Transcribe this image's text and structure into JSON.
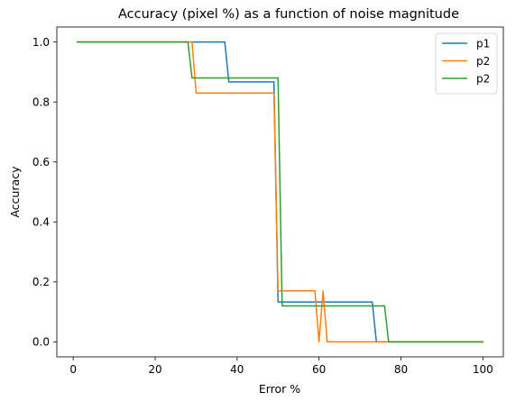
{
  "chart_data": {
    "type": "line",
    "title": "Accuracy (pixel %) as a function of noise magnitude",
    "xlabel": "Error %",
    "ylabel": "Accuracy",
    "xlim": [
      -4,
      105
    ],
    "ylim": [
      -0.05,
      1.05
    ],
    "xticks": [
      0,
      20,
      40,
      60,
      80,
      100
    ],
    "yticks": [
      0.0,
      0.2,
      0.4,
      0.6,
      0.8,
      1.0
    ],
    "xtick_labels": [
      "0",
      "20",
      "40",
      "60",
      "80",
      "100"
    ],
    "ytick_labels": [
      "0.0",
      "0.2",
      "0.4",
      "0.6",
      "0.8",
      "1.0"
    ],
    "grid": false,
    "legend_position": "top-right",
    "series": [
      {
        "name": "p1",
        "color": "#1f77b4",
        "x": [
          1,
          37,
          38,
          49,
          50,
          73,
          74,
          100
        ],
        "y": [
          1.0,
          1.0,
          0.867,
          0.867,
          0.133,
          0.133,
          0.0,
          0.0
        ]
      },
      {
        "name": "p2",
        "color": "#ff7f0e",
        "x": [
          1,
          29,
          30,
          49,
          50,
          59,
          60,
          61,
          62,
          100
        ],
        "y": [
          1.0,
          1.0,
          0.83,
          0.83,
          0.17,
          0.17,
          0.0,
          0.17,
          0.0,
          0.0
        ]
      },
      {
        "name": "p2",
        "color": "#2ca02c",
        "x": [
          1,
          28,
          29,
          50,
          51,
          76,
          77,
          100
        ],
        "y": [
          1.0,
          1.0,
          0.88,
          0.88,
          0.12,
          0.12,
          0.0,
          0.0
        ]
      }
    ]
  }
}
